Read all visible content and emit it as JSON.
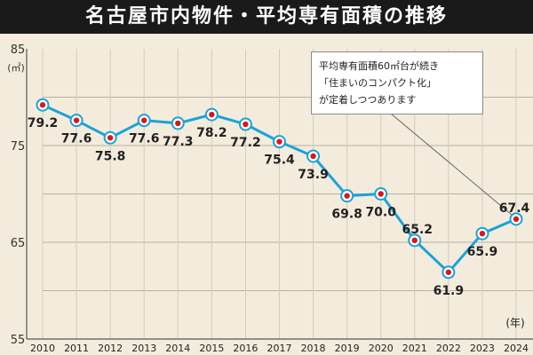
{
  "title": "名古屋市内物件・平均専有面積の推移",
  "annotation": [
    "平均専有面積60㎡台が続き",
    "「住まいのコンパクト化」",
    "が定着しつつあります"
  ],
  "chart_data": {
    "type": "line",
    "title": "名古屋市内物件・平均専有面積の推移",
    "ylabel": "(㎡)",
    "xlabel": "(年)",
    "ylim": [
      55,
      85
    ],
    "yticks": [
      85,
      75,
      65,
      55
    ],
    "grid": true,
    "categories": [
      "2010",
      "2011",
      "2012",
      "2013",
      "2014",
      "2015",
      "2016",
      "2017",
      "2018",
      "2019",
      "2020",
      "2021",
      "2022",
      "2023",
      "2024"
    ],
    "values": [
      79.2,
      77.6,
      75.8,
      77.6,
      77.3,
      78.2,
      77.2,
      75.4,
      73.9,
      69.8,
      70.0,
      65.2,
      61.9,
      65.9,
      67.4
    ],
    "labels": [
      "79.2",
      "77.6",
      "75.8",
      "77.6",
      "77.3",
      "78.2",
      "77.2",
      "75.4",
      "73.9",
      "69.8",
      "70.0",
      "65.2",
      "61.9",
      "65.9",
      "67.4"
    ],
    "line_color": "#1aa3d9",
    "marker_color": "#d7191c"
  }
}
